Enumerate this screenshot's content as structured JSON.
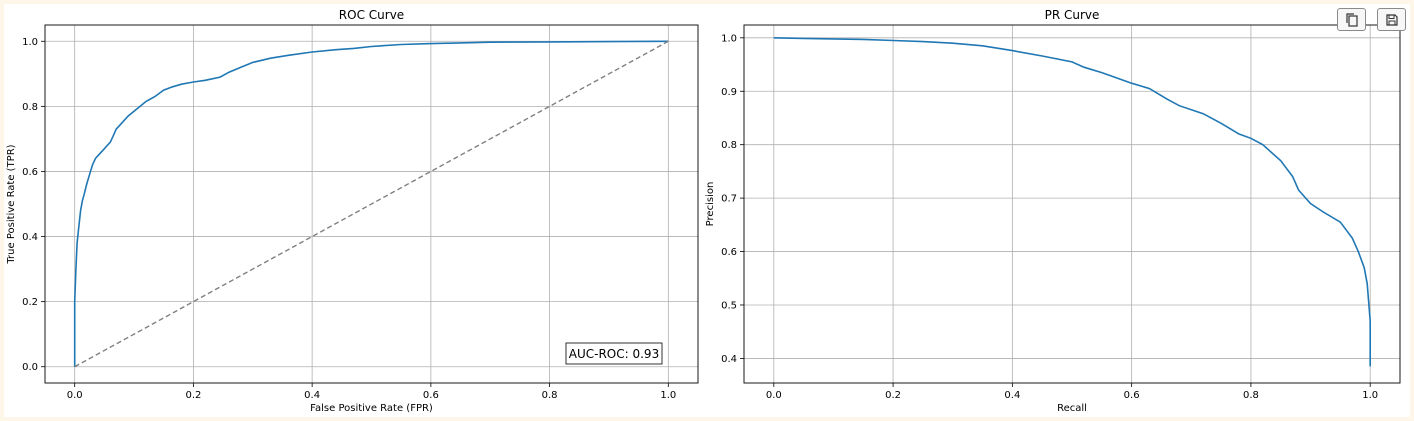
{
  "toolbar": {
    "copy_icon": "copy-icon",
    "save_icon": "save-icon"
  },
  "chart_data": [
    {
      "type": "line",
      "title": "ROC Curve",
      "xlabel": "False Positive Rate (FPR)",
      "ylabel": "True Positive Rate (TPR)",
      "xlim": [
        -0.05,
        1.05
      ],
      "ylim": [
        -0.05,
        1.05
      ],
      "xticks": [
        0.0,
        0.2,
        0.4,
        0.6,
        0.8,
        1.0
      ],
      "yticks": [
        0.0,
        0.2,
        0.4,
        0.6,
        0.8,
        1.0
      ],
      "tick_labels_x": [
        "0.0",
        "0.2",
        "0.4",
        "0.6",
        "0.8",
        "1.0"
      ],
      "tick_labels_y": [
        "0.0",
        "0.2",
        "0.4",
        "0.6",
        "0.8",
        "1.0"
      ],
      "grid": true,
      "annotation": "AUC-ROC: 0.93",
      "annotation_position": "bottom-right",
      "series": [
        {
          "color": "#1f77b4",
          "style": "solid",
          "x": [
            0.0,
            0.0,
            0.002,
            0.004,
            0.007,
            0.01,
            0.013,
            0.016,
            0.02,
            0.025,
            0.03,
            0.035,
            0.04,
            0.045,
            0.05,
            0.055,
            0.06,
            0.065,
            0.07,
            0.075,
            0.08,
            0.09,
            0.1,
            0.11,
            0.12,
            0.135,
            0.15,
            0.165,
            0.18,
            0.2,
            0.22,
            0.245,
            0.26,
            0.28,
            0.3,
            0.33,
            0.36,
            0.4,
            0.44,
            0.47,
            0.5,
            0.55,
            0.6,
            0.65,
            0.7,
            0.8,
            0.9,
            1.0
          ],
          "y": [
            0.0,
            0.2,
            0.3,
            0.38,
            0.43,
            0.48,
            0.51,
            0.53,
            0.56,
            0.59,
            0.62,
            0.64,
            0.65,
            0.66,
            0.67,
            0.68,
            0.69,
            0.71,
            0.73,
            0.74,
            0.75,
            0.77,
            0.785,
            0.8,
            0.815,
            0.83,
            0.85,
            0.86,
            0.868,
            0.875,
            0.88,
            0.89,
            0.905,
            0.92,
            0.935,
            0.948,
            0.957,
            0.967,
            0.974,
            0.978,
            0.984,
            0.99,
            0.993,
            0.995,
            0.997,
            0.998,
            0.999,
            1.0
          ]
        },
        {
          "color": "#808080",
          "style": "dashed",
          "x": [
            0.0,
            1.0
          ],
          "y": [
            0.0,
            1.0
          ]
        }
      ]
    },
    {
      "type": "line",
      "title": "PR Curve",
      "xlabel": "Recall",
      "ylabel": "Precision",
      "xlim": [
        -0.05,
        1.05
      ],
      "ylim": [
        0.354,
        1.024
      ],
      "xticks": [
        0.0,
        0.2,
        0.4,
        0.6,
        0.8,
        1.0
      ],
      "yticks": [
        0.4,
        0.5,
        0.6,
        0.7,
        0.8,
        0.9,
        1.0
      ],
      "tick_labels_x": [
        "0.0",
        "0.2",
        "0.4",
        "0.6",
        "0.8",
        "1.0"
      ],
      "tick_labels_y": [
        "0.4",
        "0.5",
        "0.6",
        "0.7",
        "0.8",
        "0.9",
        "1.0"
      ],
      "grid": true,
      "series": [
        {
          "color": "#1f77b4",
          "style": "solid",
          "x": [
            0.0,
            0.05,
            0.1,
            0.15,
            0.2,
            0.25,
            0.3,
            0.35,
            0.4,
            0.45,
            0.5,
            0.52,
            0.55,
            0.6,
            0.63,
            0.66,
            0.68,
            0.72,
            0.75,
            0.78,
            0.8,
            0.82,
            0.85,
            0.87,
            0.88,
            0.9,
            0.92,
            0.95,
            0.97,
            0.98,
            0.99,
            0.995,
            1.0,
            1.0
          ],
          "y": [
            1.0,
            0.999,
            0.998,
            0.997,
            0.995,
            0.993,
            0.99,
            0.985,
            0.976,
            0.966,
            0.955,
            0.945,
            0.935,
            0.915,
            0.905,
            0.885,
            0.873,
            0.858,
            0.84,
            0.82,
            0.812,
            0.8,
            0.77,
            0.74,
            0.715,
            0.69,
            0.675,
            0.655,
            0.625,
            0.6,
            0.57,
            0.54,
            0.47,
            0.385
          ]
        }
      ]
    }
  ]
}
